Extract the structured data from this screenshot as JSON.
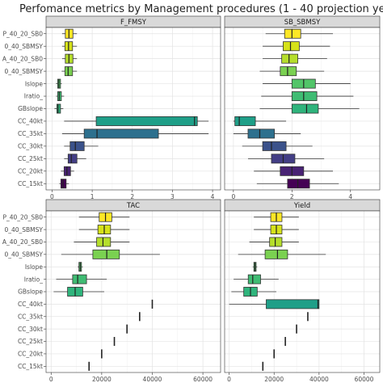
{
  "chart_data": {
    "title": "Perfomance metrics by Management procedures (1 - 40 projection years)",
    "type": "boxplot",
    "categories": [
      "P_40_20_SB0",
      "0_40_SBMSY",
      "A_40_20_SB0",
      "0_40_SBMSY",
      "Islope",
      "Iratio_",
      "GBslope",
      "CC_40kt",
      "CC_35kt",
      "CC_30kt",
      "CC_25kt",
      "CC_20kt",
      "CC_15kt"
    ],
    "colors": [
      "#f7e11f",
      "#d7e219",
      "#b5de2b",
      "#8fd744",
      "#6ccd5a",
      "#4ec36b",
      "#35b779",
      "#26a784",
      "#1f9a8a",
      "#25838e",
      "#2d6f8e",
      "#375b8d",
      "#404387"
    ],
    "fill_scale": [
      "#fde725",
      "#d6e21a",
      "#b5de2b",
      "#7ad151",
      "#52c569",
      "#3fbc73",
      "#2fb47c",
      "#1f9f88",
      "#2d708e",
      "#3b528b",
      "#433e85",
      "#482374",
      "#440154"
    ],
    "panels": [
      {
        "name": "F_FMSY",
        "xlim": [
          -0.15,
          4.2
        ],
        "xticks": [
          0,
          1,
          2,
          3,
          4
        ],
        "boxes": [
          {
            "min": 0.25,
            "q1": 0.33,
            "median": 0.42,
            "q3": 0.52,
            "max": 0.62
          },
          {
            "min": 0.25,
            "q1": 0.32,
            "median": 0.41,
            "q3": 0.51,
            "max": 0.62
          },
          {
            "min": 0.25,
            "q1": 0.33,
            "median": 0.42,
            "q3": 0.52,
            "max": 0.62
          },
          {
            "min": 0.24,
            "q1": 0.32,
            "median": 0.4,
            "q3": 0.51,
            "max": 0.62
          },
          {
            "min": 0.1,
            "q1": 0.14,
            "median": 0.17,
            "q3": 0.21,
            "max": 0.24
          },
          {
            "min": 0.1,
            "q1": 0.14,
            "median": 0.18,
            "q3": 0.23,
            "max": 0.3
          },
          {
            "min": 0.06,
            "q1": 0.12,
            "median": 0.15,
            "q3": 0.21,
            "max": 0.28
          },
          {
            "min": 0.3,
            "q1": 1.1,
            "median": 3.55,
            "q3": 3.62,
            "max": 3.9
          },
          {
            "min": 0.25,
            "q1": 0.8,
            "median": 1.12,
            "q3": 2.65,
            "max": 3.9
          },
          {
            "min": 0.3,
            "q1": 0.45,
            "median": 0.58,
            "q3": 0.8,
            "max": 1.15
          },
          {
            "min": 0.3,
            "q1": 0.4,
            "median": 0.48,
            "q3": 0.62,
            "max": 0.85
          },
          {
            "min": 0.22,
            "q1": 0.3,
            "median": 0.37,
            "q3": 0.46,
            "max": 0.55
          },
          {
            "min": 0.18,
            "q1": 0.22,
            "median": 0.27,
            "q3": 0.35,
            "max": 0.42
          }
        ]
      },
      {
        "name": "SB_SBMSY",
        "xlim": [
          -0.3,
          5.0
        ],
        "xticks": [
          0,
          2,
          4
        ],
        "boxes": [
          {
            "min": 1.1,
            "q1": 1.75,
            "median": 2.0,
            "q3": 2.3,
            "max": 3.4
          },
          {
            "min": 1.0,
            "q1": 1.7,
            "median": 1.95,
            "q3": 2.25,
            "max": 3.3
          },
          {
            "min": 1.0,
            "q1": 1.65,
            "median": 1.9,
            "q3": 2.2,
            "max": 3.2
          },
          {
            "min": 0.9,
            "q1": 1.6,
            "median": 1.85,
            "q3": 2.15,
            "max": 3.1
          },
          {
            "min": 1.0,
            "q1": 2.0,
            "median": 2.4,
            "q3": 2.8,
            "max": 4.0
          },
          {
            "min": 0.95,
            "q1": 2.0,
            "median": 2.4,
            "q3": 2.85,
            "max": 4.1
          },
          {
            "min": 0.9,
            "q1": 2.0,
            "median": 2.5,
            "q3": 2.9,
            "max": 4.3
          },
          {
            "min": 0.0,
            "q1": 0.05,
            "median": 0.2,
            "q3": 0.75,
            "max": 1.8
          },
          {
            "min": 0.0,
            "q1": 0.5,
            "median": 0.9,
            "q3": 1.4,
            "max": 2.3
          },
          {
            "min": 0.3,
            "q1": 1.0,
            "median": 1.3,
            "q3": 1.8,
            "max": 2.7
          },
          {
            "min": 0.5,
            "q1": 1.3,
            "median": 1.7,
            "q3": 2.1,
            "max": 3.1
          },
          {
            "min": 0.7,
            "q1": 1.6,
            "median": 2.0,
            "q3": 2.4,
            "max": 3.4
          },
          {
            "min": 0.8,
            "q1": 1.85,
            "median": 2.2,
            "q3": 2.6,
            "max": 3.6
          }
        ]
      },
      {
        "name": "TAC",
        "xlim": [
          -2000,
          67000
        ],
        "xticks": [
          0,
          20000,
          40000,
          60000
        ],
        "boxes": [
          {
            "min": 11000,
            "q1": 19000,
            "median": 21500,
            "q3": 24000,
            "max": 31000
          },
          {
            "min": 11000,
            "q1": 18500,
            "median": 21000,
            "q3": 23500,
            "max": 31000
          },
          {
            "min": 9000,
            "q1": 18000,
            "median": 20500,
            "q3": 23500,
            "max": 31000
          },
          {
            "min": 4000,
            "q1": 16500,
            "median": 22000,
            "q3": 27000,
            "max": 43000
          },
          {
            "min": 10500,
            "q1": 11000,
            "median": 11500,
            "q3": 12000,
            "max": 12500
          },
          {
            "min": 2000,
            "q1": 8500,
            "median": 10500,
            "q3": 14000,
            "max": 22000
          },
          {
            "min": 1000,
            "q1": 6500,
            "median": 9500,
            "q3": 12500,
            "max": 21000
          },
          {
            "min": 40000,
            "q1": 40000,
            "median": 40000,
            "q3": 40000,
            "max": 40000
          },
          {
            "min": 35000,
            "q1": 35000,
            "median": 35000,
            "q3": 35000,
            "max": 35000
          },
          {
            "min": 30000,
            "q1": 30000,
            "median": 30000,
            "q3": 30000,
            "max": 30000
          },
          {
            "min": 25000,
            "q1": 25000,
            "median": 25000,
            "q3": 25000,
            "max": 25000
          },
          {
            "min": 20000,
            "q1": 20000,
            "median": 20000,
            "q3": 20000,
            "max": 20000
          },
          {
            "min": 15000,
            "q1": 15000,
            "median": 15000,
            "q3": 15000,
            "max": 15000
          }
        ]
      },
      {
        "name": "Yield",
        "xlim": [
          -2000,
          67000
        ],
        "xticks": [
          0,
          20000,
          40000,
          60000
        ],
        "boxes": [
          {
            "min": 11000,
            "q1": 18500,
            "median": 21000,
            "q3": 23500,
            "max": 31000
          },
          {
            "min": 11000,
            "q1": 18500,
            "median": 21000,
            "q3": 23500,
            "max": 31000
          },
          {
            "min": 9000,
            "q1": 18000,
            "median": 20500,
            "q3": 23500,
            "max": 31000
          },
          {
            "min": 4000,
            "q1": 16000,
            "median": 21500,
            "q3": 26000,
            "max": 43000
          },
          {
            "min": 10500,
            "q1": 11000,
            "median": 11500,
            "q3": 12000,
            "max": 12500
          },
          {
            "min": 2000,
            "q1": 8500,
            "median": 10500,
            "q3": 14000,
            "max": 22000
          },
          {
            "min": 1000,
            "q1": 6500,
            "median": 9500,
            "q3": 12500,
            "max": 21000
          },
          {
            "min": 0,
            "q1": 16500,
            "median": 39500,
            "q3": 40000,
            "max": 40000
          },
          {
            "min": 35000,
            "q1": 35000,
            "median": 35000,
            "q3": 35000,
            "max": 35000
          },
          {
            "min": 30000,
            "q1": 30000,
            "median": 30000,
            "q3": 30000,
            "max": 30000
          },
          {
            "min": 25000,
            "q1": 25000,
            "median": 25000,
            "q3": 25000,
            "max": 25000
          },
          {
            "min": 20000,
            "q1": 20000,
            "median": 20000,
            "q3": 20000,
            "max": 20000
          },
          {
            "min": 15000,
            "q1": 15000,
            "median": 15000,
            "q3": 15000,
            "max": 15000
          }
        ]
      }
    ]
  }
}
